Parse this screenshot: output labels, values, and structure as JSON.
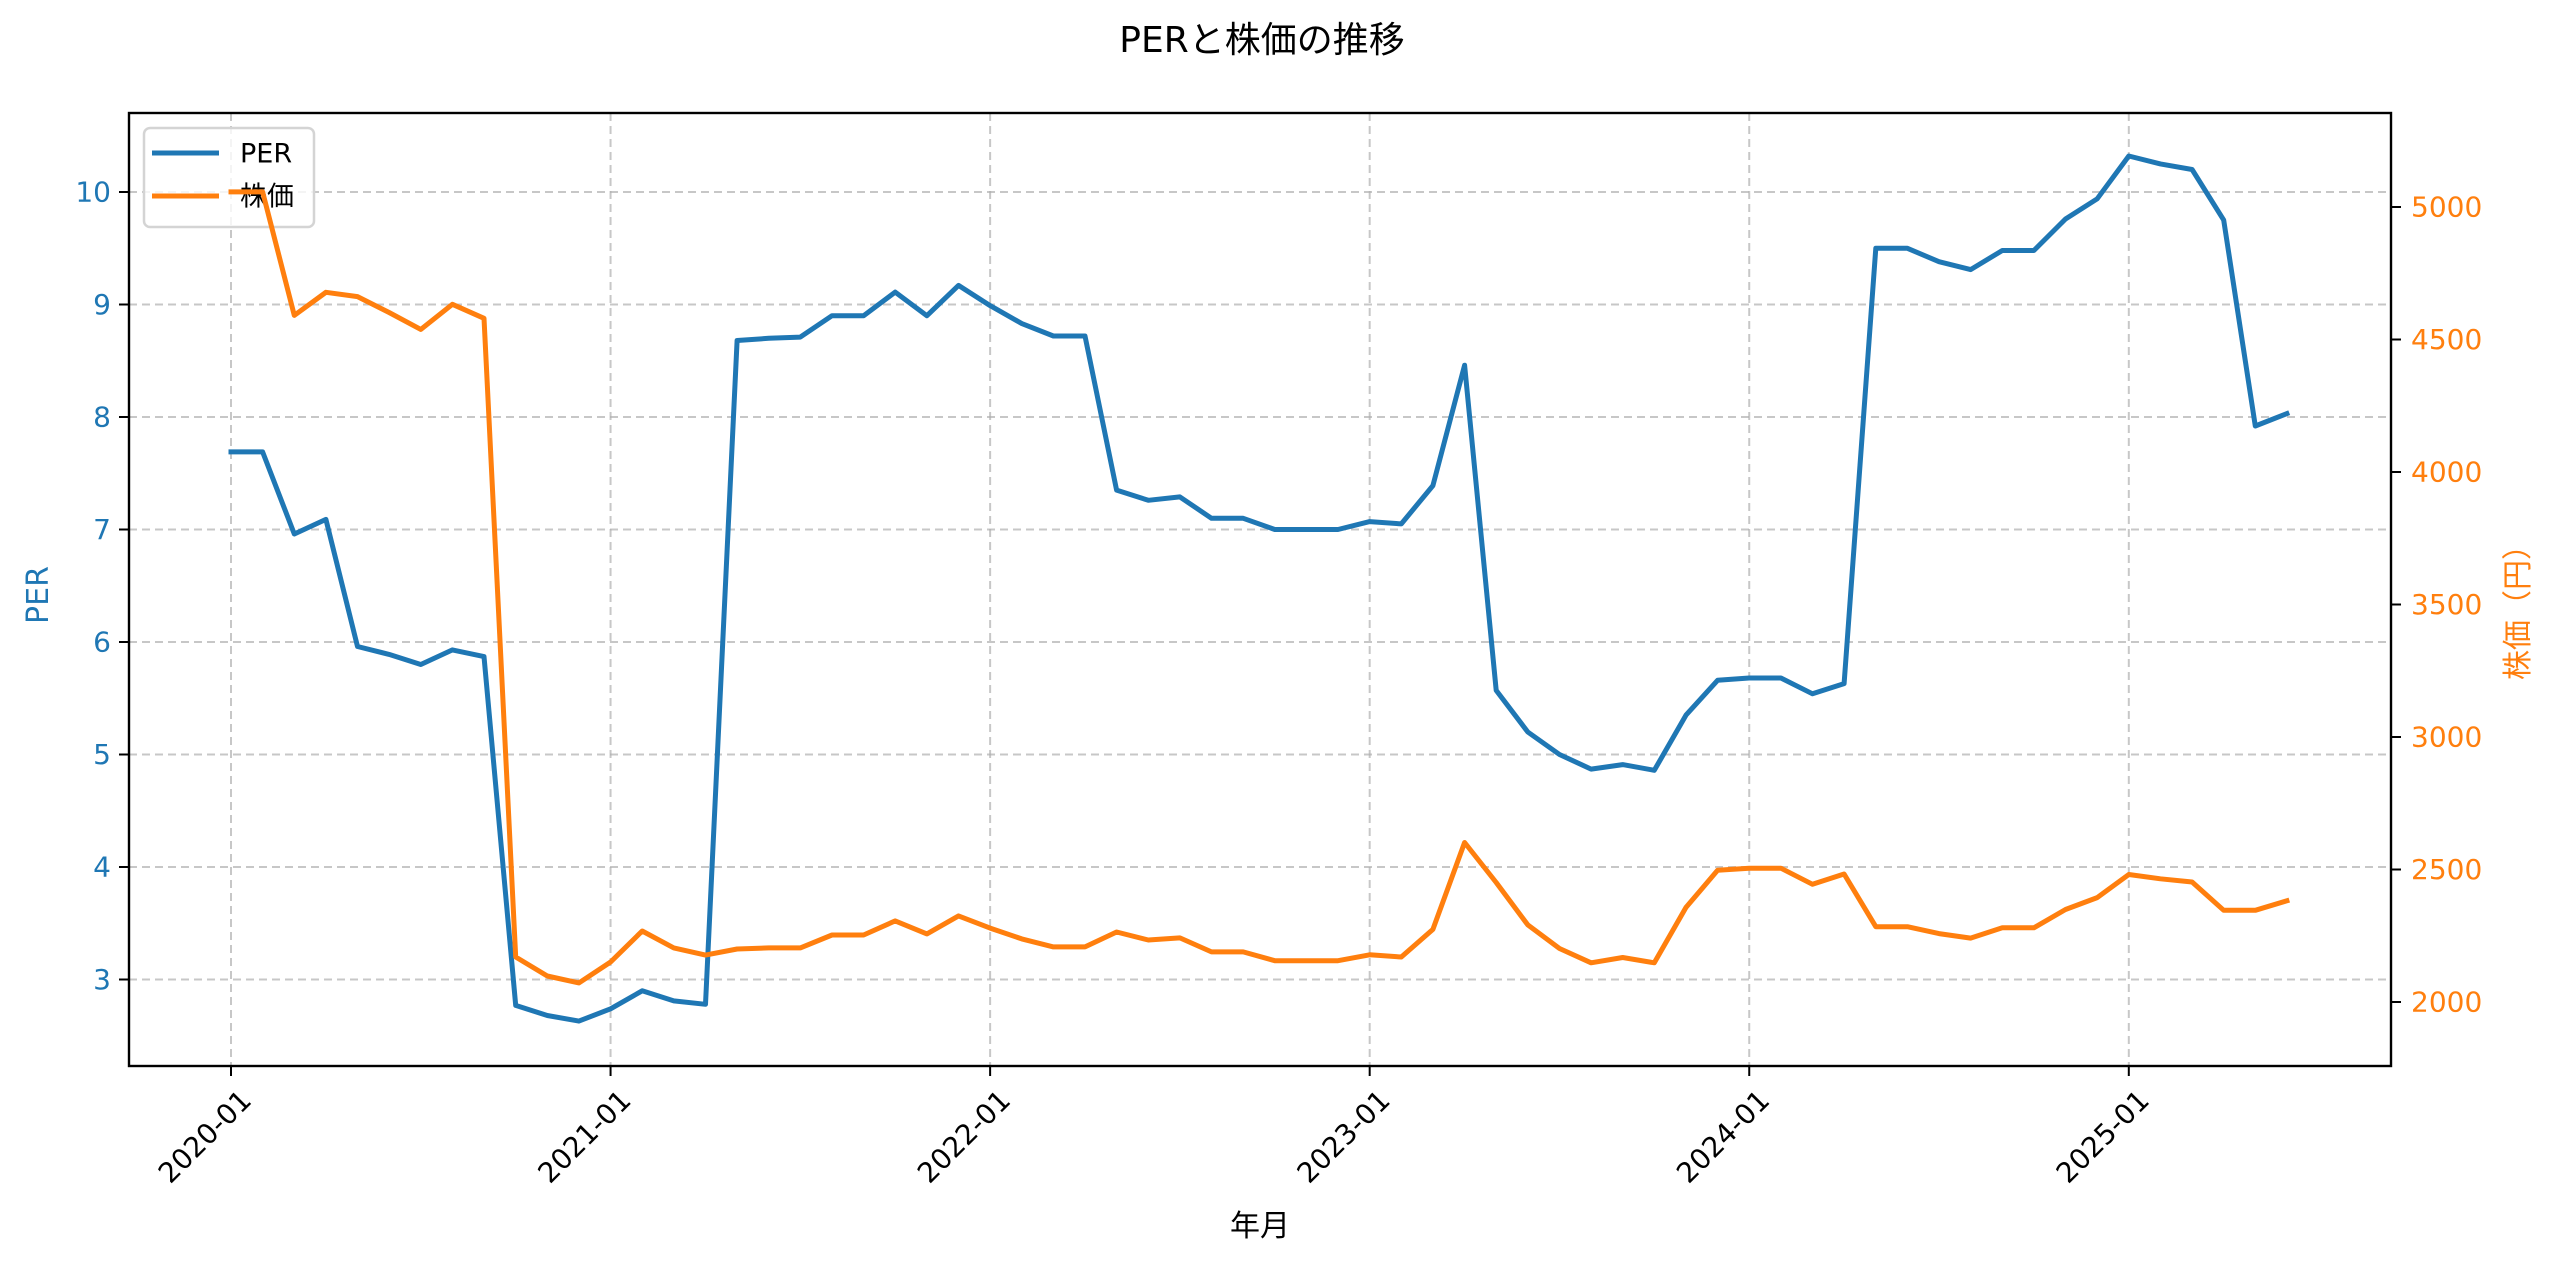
{
  "chart_data": {
    "type": "line",
    "title": "PERと株価の推移",
    "xlabel": "年月",
    "ylabel": "PER",
    "ylabel_right": "株価（円）",
    "grid": true,
    "legend_position": "upper left",
    "x_tick_labels": [
      "2020-01",
      "2021-01",
      "2022-01",
      "2023-01",
      "2024-01",
      "2025-01"
    ],
    "y_left_ticks": [
      3,
      4,
      5,
      6,
      7,
      8,
      9,
      10
    ],
    "y_right_ticks": [
      2000,
      2500,
      3000,
      3500,
      4000,
      4500,
      5000
    ],
    "ylim": [
      2.23,
      10.7
    ],
    "ylim_right": [
      1780,
      5350
    ],
    "x": [
      "2020-01",
      "2020-02",
      "2020-03",
      "2020-04",
      "2020-05",
      "2020-06",
      "2020-07",
      "2020-08",
      "2020-09",
      "2020-10",
      "2020-11",
      "2020-12",
      "2021-01",
      "2021-02",
      "2021-03",
      "2021-04",
      "2021-05",
      "2021-06",
      "2021-07",
      "2021-08",
      "2021-09",
      "2021-10",
      "2021-11",
      "2021-12",
      "2022-01",
      "2022-02",
      "2022-03",
      "2022-04",
      "2022-05",
      "2022-06",
      "2022-07",
      "2022-08",
      "2022-09",
      "2022-10",
      "2022-11",
      "2022-12",
      "2023-01",
      "2023-02",
      "2023-03",
      "2023-04",
      "2023-05",
      "2023-06",
      "2023-07",
      "2023-08",
      "2023-09",
      "2023-10",
      "2023-11",
      "2023-12",
      "2024-01",
      "2024-02",
      "2024-03",
      "2024-04",
      "2024-05",
      "2024-06",
      "2024-07",
      "2024-08",
      "2024-09",
      "2024-10",
      "2024-11",
      "2024-12",
      "2025-01",
      "2025-02",
      "2025-03",
      "2025-04",
      "2025-05",
      "2025-06"
    ],
    "series": [
      {
        "name": "PER",
        "axis": "left",
        "color": "#1f77b4",
        "values": [
          7.69,
          7.69,
          6.96,
          7.09,
          5.96,
          5.89,
          5.8,
          5.93,
          5.87,
          2.77,
          2.68,
          2.63,
          2.74,
          2.9,
          2.81,
          2.78,
          8.68,
          8.7,
          8.71,
          8.9,
          8.9,
          9.11,
          8.9,
          9.17,
          8.99,
          8.83,
          8.72,
          8.72,
          7.35,
          7.26,
          7.29,
          7.1,
          7.1,
          7.0,
          7.0,
          7.0,
          7.07,
          7.05,
          7.39,
          8.46,
          5.57,
          5.2,
          5.0,
          4.87,
          4.91,
          4.86,
          5.35,
          5.66,
          5.68,
          5.68,
          5.54,
          5.63,
          9.5,
          9.5,
          9.38,
          9.31,
          9.48,
          9.48,
          9.76,
          9.94,
          10.32,
          10.25,
          10.2,
          9.75,
          7.92,
          8.03
        ]
      },
      {
        "name": "株価",
        "axis": "right",
        "color": "#ff7f0e",
        "values": [
          5057,
          5057,
          4591,
          4678,
          4662,
          4602,
          4538,
          4633,
          4580,
          2170,
          2098,
          2072,
          2151,
          2268,
          2204,
          2177,
          2200,
          2204,
          2204,
          2253,
          2253,
          2306,
          2257,
          2325,
          2279,
          2238,
          2208,
          2208,
          2264,
          2234,
          2242,
          2189,
          2189,
          2156,
          2156,
          2156,
          2178,
          2170,
          2274,
          2602,
          2451,
          2291,
          2202,
          2148,
          2168,
          2148,
          2357,
          2497,
          2505,
          2505,
          2444,
          2483,
          2284,
          2284,
          2258,
          2241,
          2280,
          2280,
          2349,
          2394,
          2481,
          2465,
          2453,
          2346,
          2346,
          2382
        ]
      }
    ]
  },
  "legend": {
    "items": [
      {
        "label": "PER",
        "color": "#1f77b4"
      },
      {
        "label": "株価",
        "color": "#ff7f0e"
      }
    ]
  }
}
